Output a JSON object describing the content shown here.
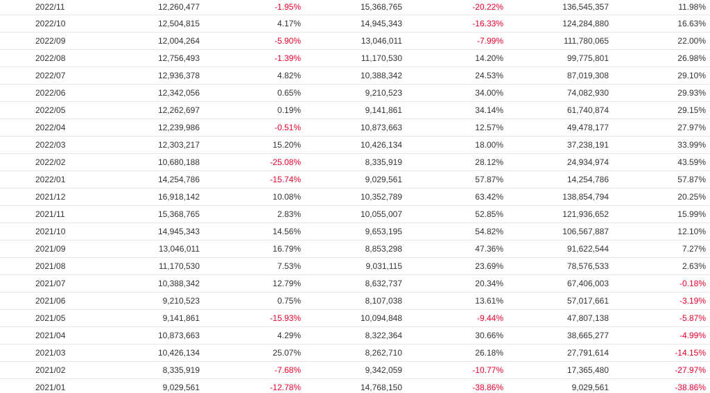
{
  "colors": {
    "negative": "#e8002a",
    "default": "#333333",
    "row_border": "#e6e6e6"
  },
  "rows": [
    [
      "2022/11",
      "12,260,477",
      "-1.95%",
      "15,368,765",
      "-20.22%",
      "136,545,357",
      "11.98%"
    ],
    [
      "2022/10",
      "12,504,815",
      "4.17%",
      "14,945,343",
      "-16.33%",
      "124,284,880",
      "16.63%"
    ],
    [
      "2022/09",
      "12,004,264",
      "-5.90%",
      "13,046,011",
      "-7.99%",
      "111,780,065",
      "22.00%"
    ],
    [
      "2022/08",
      "12,756,493",
      "-1.39%",
      "11,170,530",
      "14.20%",
      "99,775,801",
      "26.98%"
    ],
    [
      "2022/07",
      "12,936,378",
      "4.82%",
      "10,388,342",
      "24.53%",
      "87,019,308",
      "29.10%"
    ],
    [
      "2022/06",
      "12,342,056",
      "0.65%",
      "9,210,523",
      "34.00%",
      "74,082,930",
      "29.93%"
    ],
    [
      "2022/05",
      "12,262,697",
      "0.19%",
      "9,141,861",
      "34.14%",
      "61,740,874",
      "29.15%"
    ],
    [
      "2022/04",
      "12,239,986",
      "-0.51%",
      "10,873,663",
      "12.57%",
      "49,478,177",
      "27.97%"
    ],
    [
      "2022/03",
      "12,303,217",
      "15.20%",
      "10,426,134",
      "18.00%",
      "37,238,191",
      "33.99%"
    ],
    [
      "2022/02",
      "10,680,188",
      "-25.08%",
      "8,335,919",
      "28.12%",
      "24,934,974",
      "43.59%"
    ],
    [
      "2022/01",
      "14,254,786",
      "-15.74%",
      "9,029,561",
      "57.87%",
      "14,254,786",
      "57.87%"
    ],
    [
      "2021/12",
      "16,918,142",
      "10.08%",
      "10,352,789",
      "63.42%",
      "138,854,794",
      "20.25%"
    ],
    [
      "2021/11",
      "15,368,765",
      "2.83%",
      "10,055,007",
      "52.85%",
      "121,936,652",
      "15.99%"
    ],
    [
      "2021/10",
      "14,945,343",
      "14.56%",
      "9,653,195",
      "54.82%",
      "106,567,887",
      "12.10%"
    ],
    [
      "2021/09",
      "13,046,011",
      "16.79%",
      "8,853,298",
      "47.36%",
      "91,622,544",
      "7.27%"
    ],
    [
      "2021/08",
      "11,170,530",
      "7.53%",
      "9,031,115",
      "23.69%",
      "78,576,533",
      "2.63%"
    ],
    [
      "2021/07",
      "10,388,342",
      "12.79%",
      "8,632,737",
      "20.34%",
      "67,406,003",
      "-0.18%"
    ],
    [
      "2021/06",
      "9,210,523",
      "0.75%",
      "8,107,038",
      "13.61%",
      "57,017,661",
      "-3.19%"
    ],
    [
      "2021/05",
      "9,141,861",
      "-15.93%",
      "10,094,848",
      "-9.44%",
      "47,807,138",
      "-5.87%"
    ],
    [
      "2021/04",
      "10,873,663",
      "4.29%",
      "8,322,364",
      "30.66%",
      "38,665,277",
      "-4.99%"
    ],
    [
      "2021/03",
      "10,426,134",
      "25.07%",
      "8,262,710",
      "26.18%",
      "27,791,614",
      "-14.15%"
    ],
    [
      "2021/02",
      "8,335,919",
      "-7.68%",
      "9,342,059",
      "-10.77%",
      "17,365,480",
      "-27.97%"
    ],
    [
      "2021/01",
      "9,029,561",
      "-12.78%",
      "14,768,150",
      "-38.86%",
      "9,029,561",
      "-38.86%"
    ]
  ]
}
